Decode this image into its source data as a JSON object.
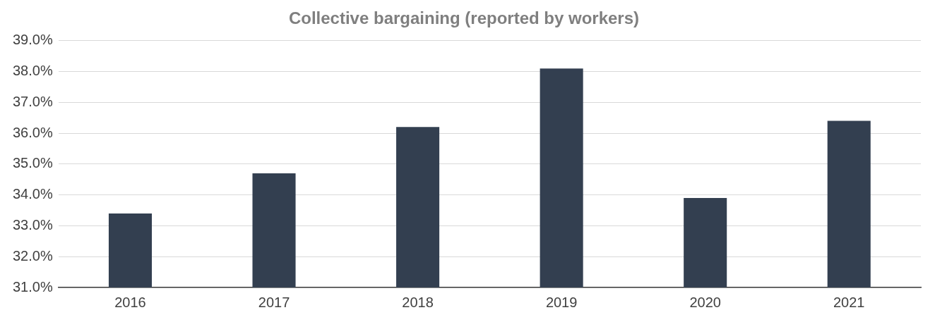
{
  "chart_data": {
    "type": "bar",
    "title": "Collective bargaining (reported by workers)",
    "categories": [
      "2016",
      "2017",
      "2018",
      "2019",
      "2020",
      "2021"
    ],
    "values": [
      33.4,
      34.7,
      36.2,
      38.1,
      33.9,
      36.4
    ],
    "color": "#333f50",
    "ylim": [
      31,
      39
    ],
    "yticks": [
      {
        "value": 31,
        "label": "31.0%"
      },
      {
        "value": 32,
        "label": "32.0%"
      },
      {
        "value": 33,
        "label": "33.0%"
      },
      {
        "value": 34,
        "label": "34.0%"
      },
      {
        "value": 35,
        "label": "35.0%"
      },
      {
        "value": 36,
        "label": "36.0%"
      },
      {
        "value": 37,
        "label": "37.0%"
      },
      {
        "value": 38,
        "label": "38.0%"
      },
      {
        "value": 39,
        "label": "39.0%"
      }
    ],
    "grid": "y",
    "legend": false
  }
}
